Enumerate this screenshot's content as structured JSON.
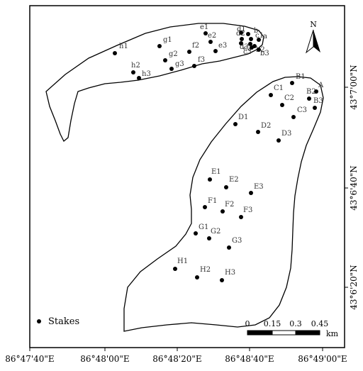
{
  "map": {
    "north_label": "N",
    "x_tick_labels": [
      "86°47'40\"E",
      "86°48'00\"E",
      "86°48'20\"E",
      "86°48'40\"E",
      "86°49'00\"E"
    ],
    "y_tick_labels": [
      "43°7'00\"N",
      "43°6'40\"N",
      "43°6'20\"N"
    ],
    "legend": {
      "label": "Stakes",
      "marker": "filled-circle"
    },
    "scale_bar": {
      "ticks": [
        "0",
        "0.15",
        "0.3",
        "0.45"
      ],
      "unit": "km"
    },
    "stakes": [
      {
        "id": "h1"
      },
      {
        "id": "g1"
      },
      {
        "id": "e1"
      },
      {
        "id": "d1"
      },
      {
        "id": "b"
      },
      {
        "id": "d2"
      },
      {
        "id": "e2"
      },
      {
        "id": "c1"
      },
      {
        "id": "a"
      },
      {
        "id": "d3"
      },
      {
        "id": "c2"
      },
      {
        "id": "b2"
      },
      {
        "id": "e3"
      },
      {
        "id": "f2"
      },
      {
        "id": "c3"
      },
      {
        "id": "b3"
      },
      {
        "id": "g2"
      },
      {
        "id": "f3"
      },
      {
        "id": "h2"
      },
      {
        "id": "g3"
      },
      {
        "id": "h3"
      },
      {
        "id": "B1"
      },
      {
        "id": "A"
      },
      {
        "id": "C1"
      },
      {
        "id": "B2"
      },
      {
        "id": "C2"
      },
      {
        "id": "B3"
      },
      {
        "id": "C3"
      },
      {
        "id": "D1"
      },
      {
        "id": "D2"
      },
      {
        "id": "D3"
      },
      {
        "id": "E1"
      },
      {
        "id": "E2"
      },
      {
        "id": "E3"
      },
      {
        "id": "F1"
      },
      {
        "id": "F2"
      },
      {
        "id": "F3"
      },
      {
        "id": "G1"
      },
      {
        "id": "G2"
      },
      {
        "id": "G3"
      },
      {
        "id": "H1"
      },
      {
        "id": "H2"
      },
      {
        "id": "H3"
      }
    ]
  }
}
